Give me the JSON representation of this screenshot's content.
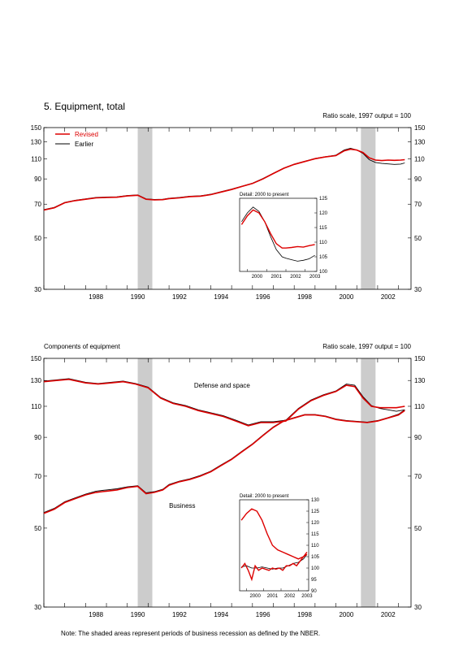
{
  "page": {
    "title": "5. Equipment, total",
    "note": "Note: The shaded areas represent periods of business recession as defined by the NBER."
  },
  "colors": {
    "revised": "#dd0000",
    "earlier": "#000000",
    "recession": "#cccccc"
  },
  "chart_data": [
    {
      "type": "line",
      "scale": "log",
      "header_left": "",
      "header_right": "Ratio scale, 1997 output = 100",
      "xlim": [
        1986.0,
        2003.6
      ],
      "ylim": [
        30,
        150
      ],
      "x_ticks": [
        "1988",
        "1990",
        "1992",
        "1994",
        "1996",
        "1998",
        "2000",
        "2002"
      ],
      "y_ticks": [
        30,
        50,
        70,
        90,
        110,
        130,
        150
      ],
      "recessions": [
        [
          1990.5,
          1991.2
        ],
        [
          2001.2,
          2001.9
        ]
      ],
      "legend": {
        "position": "top-left",
        "entries": [
          "Revised",
          "Earlier"
        ]
      },
      "annotations": [],
      "series": [
        {
          "name": "Revised",
          "role": "revised",
          "x": [
            1986.0,
            1986.5,
            1987.0,
            1987.5,
            1988.0,
            1988.5,
            1989.0,
            1989.5,
            1990.0,
            1990.5,
            1990.9,
            1991.3,
            1991.7,
            1992.0,
            1992.5,
            1993.0,
            1993.5,
            1994.0,
            1994.5,
            1995.0,
            1995.5,
            1996.0,
            1996.5,
            1997.0,
            1997.5,
            1998.0,
            1998.5,
            1999.0,
            1999.5,
            2000.0,
            2000.4,
            2000.7,
            2001.0,
            2001.3,
            2001.6,
            2001.9,
            2002.2,
            2002.5,
            2002.8,
            2003.1,
            2003.3
          ],
          "y": [
            66,
            67.5,
            71,
            72.5,
            73.5,
            74.5,
            74.8,
            75,
            76,
            76.5,
            73.5,
            73,
            73.2,
            74,
            74.5,
            75.5,
            75.8,
            77,
            79,
            81,
            83.5,
            86,
            90,
            95,
            100,
            104,
            107,
            110,
            112,
            113.5,
            119,
            121,
            120,
            117,
            111,
            108.5,
            108,
            108.5,
            108.3,
            108.5,
            109
          ]
        },
        {
          "name": "Earlier",
          "role": "earlier",
          "x": [
            1986.0,
            1986.5,
            1987.0,
            1987.5,
            1988.0,
            1988.5,
            1989.0,
            1989.5,
            1990.0,
            1990.5,
            1990.9,
            1991.3,
            1991.7,
            1992.0,
            1992.5,
            1993.0,
            1993.5,
            1994.0,
            1994.5,
            1995.0,
            1995.5,
            1996.0,
            1996.5,
            1997.0,
            1997.5,
            1998.0,
            1998.5,
            1999.0,
            1999.5,
            2000.0,
            2000.4,
            2000.7,
            2001.0,
            2001.3,
            2001.6,
            2001.9,
            2002.2,
            2002.5,
            2002.8,
            2003.1,
            2003.3
          ],
          "y": [
            66.3,
            67.8,
            71.3,
            72.8,
            73.8,
            74.8,
            75.1,
            75.3,
            76.3,
            76.8,
            73.8,
            73.3,
            73.5,
            74.3,
            74.8,
            75.8,
            76.1,
            77.3,
            79.3,
            81.3,
            83.8,
            86.3,
            90.3,
            95.3,
            100.3,
            104.3,
            107.3,
            110.3,
            112.3,
            114,
            120,
            122,
            120,
            116,
            109,
            106,
            105,
            104.5,
            104,
            104.3,
            105.5
          ]
        }
      ],
      "inset": {
        "title": "Detail: 2000 to present",
        "xlim": [
          1999.6,
          2003.6
        ],
        "ylim": [
          100,
          125
        ],
        "x_ticks": [
          "2000",
          "2001",
          "2002",
          "2003"
        ],
        "y_ticks": [
          100,
          105,
          110,
          115,
          120,
          125
        ],
        "series": [
          {
            "name": "Revised",
            "role": "revised",
            "x": [
              1999.7,
              2000.0,
              2000.3,
              2000.6,
              2000.9,
              2001.2,
              2001.5,
              2001.8,
              2002.0,
              2002.3,
              2002.6,
              2002.9,
              2003.2,
              2003.5
            ],
            "y": [
              116,
              119,
              121,
              120,
              117,
              113,
              109.5,
              108,
              108,
              108.2,
              108.5,
              108.3,
              108.8,
              109.2
            ]
          },
          {
            "name": "Earlier",
            "role": "earlier",
            "x": [
              1999.7,
              2000.0,
              2000.3,
              2000.6,
              2000.9,
              2001.2,
              2001.5,
              2001.8,
              2002.0,
              2002.3,
              2002.6,
              2002.9,
              2003.2,
              2003.5
            ],
            "y": [
              117,
              120,
              122,
              120.5,
              117,
              112,
              107.5,
              105,
              104.5,
              104,
              103.5,
              103.8,
              104.3,
              105.5
            ]
          }
        ]
      }
    },
    {
      "type": "line",
      "scale": "log",
      "header_left": "Components of equipment",
      "header_right": "Ratio scale, 1997 output = 100",
      "xlim": [
        1986.0,
        2003.6
      ],
      "ylim": [
        30,
        150
      ],
      "x_ticks": [
        "1988",
        "1990",
        "1992",
        "1994",
        "1996",
        "1998",
        "2000",
        "2002"
      ],
      "y_ticks": [
        30,
        50,
        70,
        90,
        110,
        130,
        150
      ],
      "recessions": [
        [
          1990.5,
          1991.2
        ],
        [
          2001.2,
          2001.9
        ]
      ],
      "legend": null,
      "annotations": [
        {
          "text": "Defense and space",
          "x": 1993.2,
          "y": 124
        },
        {
          "text": "Business",
          "x": 1992.0,
          "y": 57
        }
      ],
      "series": [
        {
          "name": "Defense and space",
          "role": "revised",
          "x": [
            1986.0,
            1986.6,
            1987.2,
            1988.0,
            1988.6,
            1989.2,
            1989.8,
            1990.4,
            1991.0,
            1991.6,
            1992.2,
            1992.8,
            1993.4,
            1994.0,
            1994.6,
            1995.2,
            1995.8,
            1996.4,
            1997.0,
            1997.6,
            1998.2,
            1998.8,
            1999.4,
            2000.0,
            2000.5,
            2000.9,
            2001.3,
            2001.7,
            2002.1,
            2002.5,
            2002.9,
            2003.3
          ],
          "y": [
            129,
            130,
            131,
            128,
            127,
            128,
            129,
            127,
            124,
            116,
            112,
            110,
            107,
            105,
            103,
            100,
            97,
            99,
            99,
            100,
            108,
            114,
            118,
            121,
            126,
            125,
            116,
            110,
            109,
            109,
            109,
            110
          ]
        },
        {
          "name": "Defense and space earlier",
          "role": "earlier",
          "x": [
            1986.0,
            1986.6,
            1987.2,
            1988.0,
            1988.6,
            1989.2,
            1989.8,
            1990.4,
            1991.0,
            1991.6,
            1992.2,
            1992.8,
            1993.4,
            1994.0,
            1994.6,
            1995.2,
            1995.8,
            1996.4,
            1997.0,
            1997.6,
            1998.2,
            1998.8,
            1999.4,
            2000.0,
            2000.5,
            2000.9,
            2001.3,
            2001.7,
            2002.1,
            2002.5,
            2002.9,
            2003.3
          ],
          "y": [
            129.5,
            130.5,
            131.5,
            128.5,
            127.5,
            128.5,
            129.5,
            127.5,
            124.5,
            116.5,
            112.5,
            110.5,
            107.5,
            105.5,
            103.5,
            100.5,
            97.5,
            99.5,
            99.5,
            100.5,
            108.5,
            114.5,
            118.5,
            121.5,
            127,
            126,
            117,
            110.5,
            108.5,
            107.5,
            106.5,
            107.5
          ]
        },
        {
          "name": "Business",
          "role": "revised",
          "x": [
            1986.0,
            1986.5,
            1987.0,
            1987.5,
            1988.0,
            1988.5,
            1989.0,
            1989.5,
            1990.0,
            1990.5,
            1990.9,
            1991.3,
            1991.7,
            1992.0,
            1992.5,
            1993.0,
            1993.5,
            1994.0,
            1994.5,
            1995.0,
            1995.5,
            1996.0,
            1996.5,
            1997.0,
            1997.5,
            1998.0,
            1998.5,
            1999.0,
            1999.5,
            2000.0,
            2000.5,
            2001.0,
            2001.5,
            2002.0,
            2002.5,
            2003.0,
            2003.3
          ],
          "y": [
            55,
            56.5,
            59,
            60.5,
            62,
            63,
            63.5,
            64,
            65,
            65.5,
            62.5,
            63,
            64,
            66,
            67.5,
            68.5,
            70,
            72,
            75,
            78,
            82,
            86,
            91,
            96,
            100,
            102,
            104,
            104,
            103,
            101,
            100,
            99.5,
            99,
            100,
            102,
            104,
            107
          ]
        },
        {
          "name": "Business earlier",
          "role": "earlier",
          "x": [
            1986.0,
            1986.5,
            1987.0,
            1987.5,
            1988.0,
            1988.5,
            1989.0,
            1989.5,
            1990.0,
            1990.5,
            1990.9,
            1991.3,
            1991.7,
            1992.0,
            1992.5,
            1993.0,
            1993.5,
            1994.0,
            1994.5,
            1995.0,
            1995.5,
            1996.0,
            1996.5,
            1997.0,
            1997.5,
            1998.0,
            1998.5,
            1999.0,
            1999.5,
            2000.0,
            2000.5,
            2001.0,
            2001.5,
            2002.0,
            2002.5,
            2003.0,
            2003.3
          ],
          "y": [
            55.3,
            56.8,
            59.3,
            60.8,
            62.3,
            63.5,
            64,
            64.5,
            65.3,
            65.8,
            62.8,
            63.3,
            64.3,
            66.3,
            67.8,
            68.8,
            70.3,
            72.3,
            75.3,
            78.3,
            82.3,
            86.3,
            91.3,
            96.3,
            100.3,
            102.3,
            104.3,
            104.3,
            103.3,
            101.3,
            100.3,
            99.8,
            99.3,
            100.3,
            102.3,
            104.5,
            107.5
          ]
        }
      ],
      "inset": {
        "title": "Detail: 2000 to present",
        "xlim": [
          1999.6,
          2003.6
        ],
        "ylim": [
          90,
          130
        ],
        "x_ticks": [
          "2000",
          "2001",
          "2002",
          "2003"
        ],
        "y_ticks": [
          90,
          95,
          100,
          105,
          110,
          115,
          120,
          125,
          130
        ],
        "series": [
          {
            "name": "Defense and space",
            "role": "revised",
            "x": [
              1999.7,
              2000.0,
              2000.3,
              2000.6,
              2000.9,
              2001.2,
              2001.5,
              2001.8,
              2002.1,
              2002.4,
              2002.7,
              2003.0,
              2003.3,
              2003.5
            ],
            "y": [
              121,
              124,
              126,
              125,
              121,
              115,
              110,
              108,
              107,
              106,
              105,
              104,
              105,
              106
            ]
          },
          {
            "name": "Business",
            "role": "revised",
            "x": [
              1999.7,
              1999.9,
              2000.1,
              2000.3,
              2000.5,
              2000.7,
              2000.9,
              2001.1,
              2001.3,
              2001.5,
              2001.7,
              2001.9,
              2002.1,
              2002.3,
              2002.5,
              2002.7,
              2002.9,
              2003.1,
              2003.3,
              2003.5
            ],
            "y": [
              100,
              102,
              99,
              95,
              101,
              99,
              100,
              99.5,
              99,
              100,
              99.5,
              100,
              99,
              101,
              101,
              102,
              101,
              103,
              105,
              107
            ]
          },
          {
            "name": "Business earlier",
            "role": "earlier",
            "x": [
              1999.7,
              2000.0,
              2000.3,
              2000.6,
              2000.9,
              2001.2,
              2001.5,
              2001.8,
              2002.1,
              2002.4,
              2002.7,
              2003.0,
              2003.3,
              2003.5
            ],
            "y": [
              100.5,
              101,
              100,
              100,
              100.5,
              100,
              99.5,
              100,
              100,
              101,
              102,
              102.5,
              104,
              106
            ]
          }
        ]
      }
    }
  ]
}
